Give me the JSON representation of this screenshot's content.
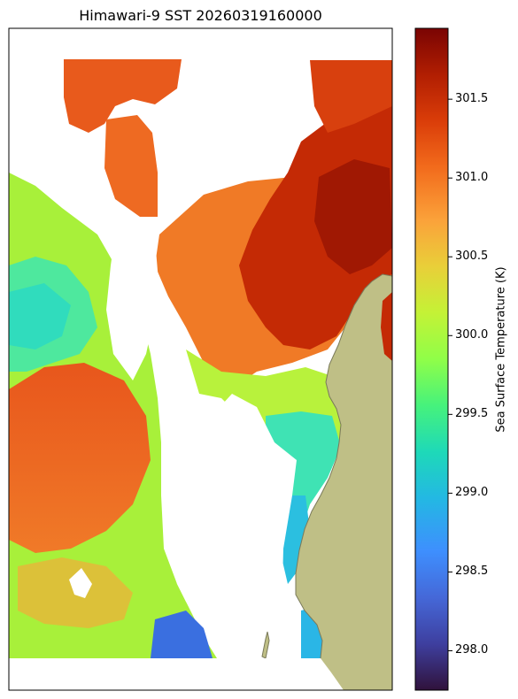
{
  "title": "Himawari-9 SST 20260319160000",
  "colorbar": {
    "label": "Sea Surface Temperature (K)",
    "ticks": [
      "301.5",
      "301.0",
      "300.5",
      "300.0",
      "299.5",
      "299.0",
      "298.5",
      "298.0"
    ],
    "range": [
      297.75,
      301.95
    ],
    "colormap": "turbo"
  },
  "colors": {
    "land": "#bfbf86",
    "coast": "#7a7a5a",
    "frame": "#000000",
    "missing": "#ffffff"
  }
}
